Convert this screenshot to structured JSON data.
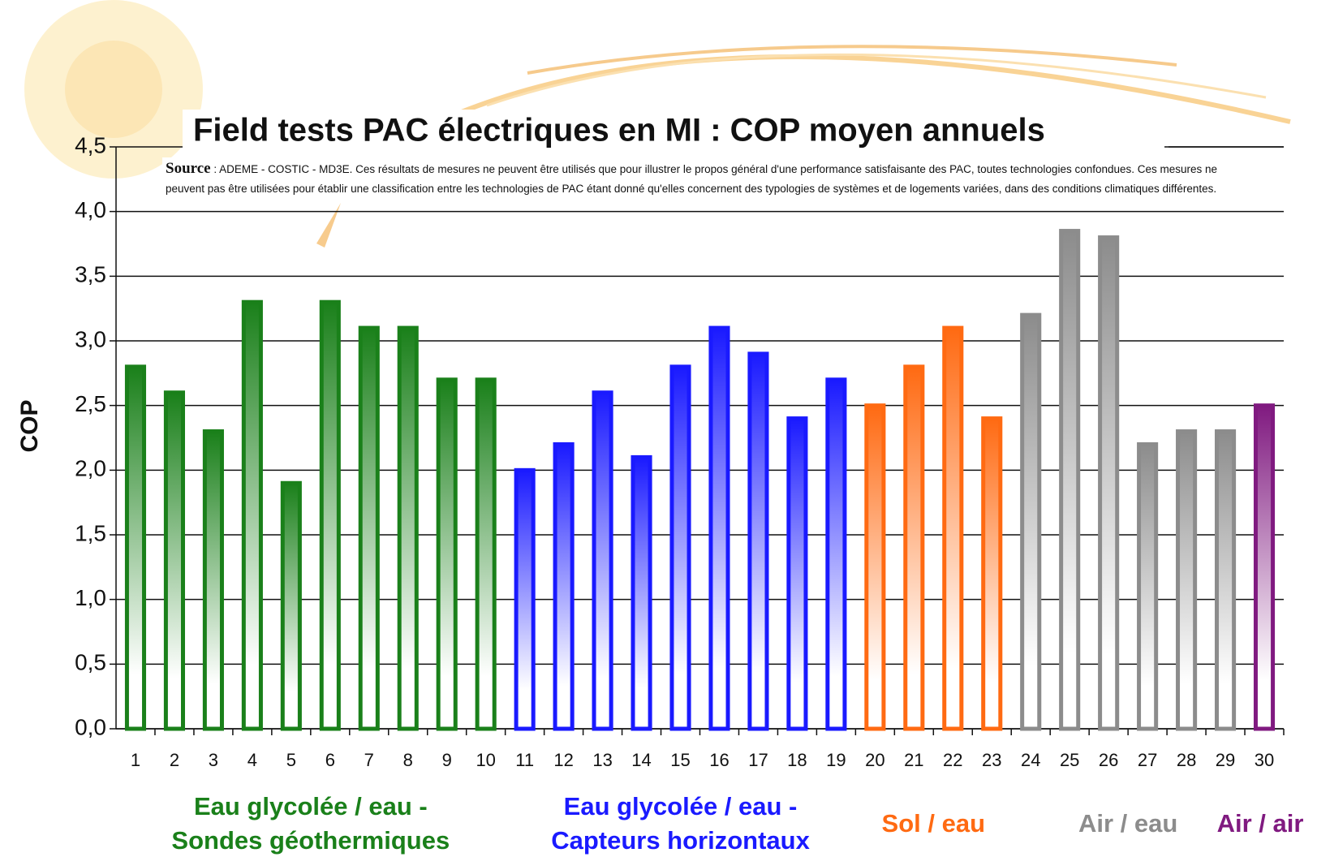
{
  "chart_data": {
    "type": "bar",
    "title": "Field tests PAC électriques en MI : COP moyen annuels",
    "annotation_label": "Source",
    "annotation": ": ADEME - COSTIC - MD3E. Ces résultats de mesures ne peuvent être utilisés que pour illustrer le propos général d'une performance satisfaisante des PAC, toutes technologies confondues. Ces mesures ne peuvent pas être utilisées pour établir une classification entre les technologies de PAC étant donné qu'elles concernent des typologies de systèmes et de logements variées, dans des conditions climatiques différentes.",
    "ylabel": "COP",
    "categories": [
      "1",
      "2",
      "3",
      "4",
      "5",
      "6",
      "7",
      "8",
      "9",
      "10",
      "11",
      "12",
      "13",
      "14",
      "15",
      "16",
      "17",
      "18",
      "19",
      "20",
      "21",
      "22",
      "23",
      "24",
      "25",
      "26",
      "27",
      "28",
      "29",
      "30"
    ],
    "series": [
      {
        "name": "Eau glycolée / eau - Sondes géothermiques",
        "color": "#1a801a",
        "values": [
          2.8,
          2.6,
          2.3,
          3.3,
          1.9,
          3.3,
          3.1,
          3.1,
          2.7,
          2.7,
          null,
          null,
          null,
          null,
          null,
          null,
          null,
          null,
          null,
          null,
          null,
          null,
          null,
          null,
          null,
          null,
          null,
          null,
          null,
          null
        ]
      },
      {
        "name": "Eau glycolée / eau - Capteurs horizontaux",
        "color": "#1a1aff",
        "values": [
          null,
          null,
          null,
          null,
          null,
          null,
          null,
          null,
          null,
          null,
          2.0,
          2.2,
          2.6,
          2.1,
          2.8,
          3.1,
          2.9,
          2.4,
          2.7,
          null,
          null,
          null,
          null,
          null,
          null,
          null,
          null,
          null,
          null,
          null
        ]
      },
      {
        "name": "Sol / eau",
        "color": "#ff6a12",
        "values": [
          null,
          null,
          null,
          null,
          null,
          null,
          null,
          null,
          null,
          null,
          null,
          null,
          null,
          null,
          null,
          null,
          null,
          null,
          null,
          2.5,
          2.8,
          3.1,
          2.4,
          null,
          null,
          null,
          null,
          null,
          null,
          null
        ]
      },
      {
        "name": "Air / eau",
        "color": "#8c8c8c",
        "values": [
          null,
          null,
          null,
          null,
          null,
          null,
          null,
          null,
          null,
          null,
          null,
          null,
          null,
          null,
          null,
          null,
          null,
          null,
          null,
          null,
          null,
          null,
          null,
          3.2,
          3.85,
          3.8,
          2.2,
          2.3,
          2.3,
          null
        ]
      },
      {
        "name": "Air / air",
        "color": "#801a80",
        "values": [
          null,
          null,
          null,
          null,
          null,
          null,
          null,
          null,
          null,
          null,
          null,
          null,
          null,
          null,
          null,
          null,
          null,
          null,
          null,
          null,
          null,
          null,
          null,
          null,
          null,
          null,
          null,
          null,
          null,
          2.5
        ]
      }
    ],
    "ylim": [
      0,
      4.5
    ],
    "yticks": [
      {
        "value": 0,
        "label": "0,0"
      },
      {
        "value": 0.5,
        "label": "0,5"
      },
      {
        "value": 1,
        "label": "1,0"
      },
      {
        "value": 1.5,
        "label": "1,5"
      },
      {
        "value": 2,
        "label": "2,0"
      },
      {
        "value": 2.5,
        "label": "2,5"
      },
      {
        "value": 3,
        "label": "3,0"
      },
      {
        "value": 3.5,
        "label": "3,5"
      },
      {
        "value": 4,
        "label": "4,0"
      },
      {
        "value": 4.5,
        "label": "4,5"
      }
    ],
    "grid": true
  }
}
